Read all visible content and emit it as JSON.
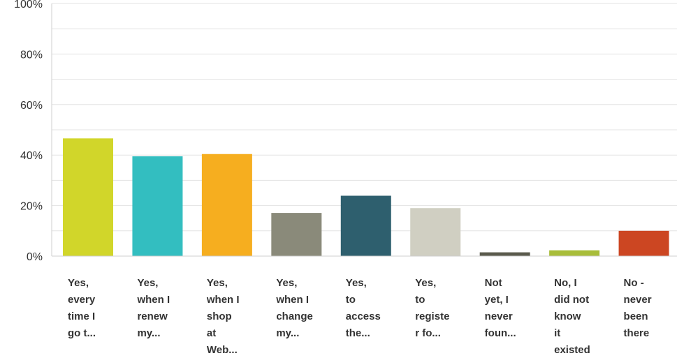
{
  "chart_data": {
    "type": "bar",
    "categories": [
      [
        "Yes,",
        "every",
        "time I",
        "go t..."
      ],
      [
        "Yes,",
        "when I",
        "renew",
        "my..."
      ],
      [
        "Yes,",
        "when I",
        "shop",
        "at",
        "Web..."
      ],
      [
        "Yes,",
        "when I",
        "change",
        "my..."
      ],
      [
        "Yes,",
        "to",
        "access",
        "the..."
      ],
      [
        "Yes,",
        "to",
        "registe",
        "r fo..."
      ],
      [
        "Not",
        "yet, I",
        "never",
        "foun..."
      ],
      [
        "No, I",
        "did not",
        "know",
        "it",
        "existed"
      ],
      [
        "No -",
        "never",
        "been",
        "there"
      ]
    ],
    "values": [
      46.6,
      39.5,
      40.4,
      17.1,
      23.9,
      19.0,
      1.5,
      2.3,
      10.0
    ],
    "colors": [
      "#d1d62a",
      "#33bec0",
      "#f6ae1f",
      "#8a8a7a",
      "#2e5f6e",
      "#d0cfc2",
      "#5a5a4c",
      "#a8bd3a",
      "#cc4622"
    ],
    "ylim": [
      0,
      100
    ],
    "yticks": [
      "0%",
      "20%",
      "40%",
      "60%",
      "80%",
      "100%"
    ],
    "ytick_values": [
      0,
      20,
      40,
      60,
      80,
      100
    ],
    "grid": true,
    "title": "",
    "xlabel": "",
    "ylabel": ""
  }
}
